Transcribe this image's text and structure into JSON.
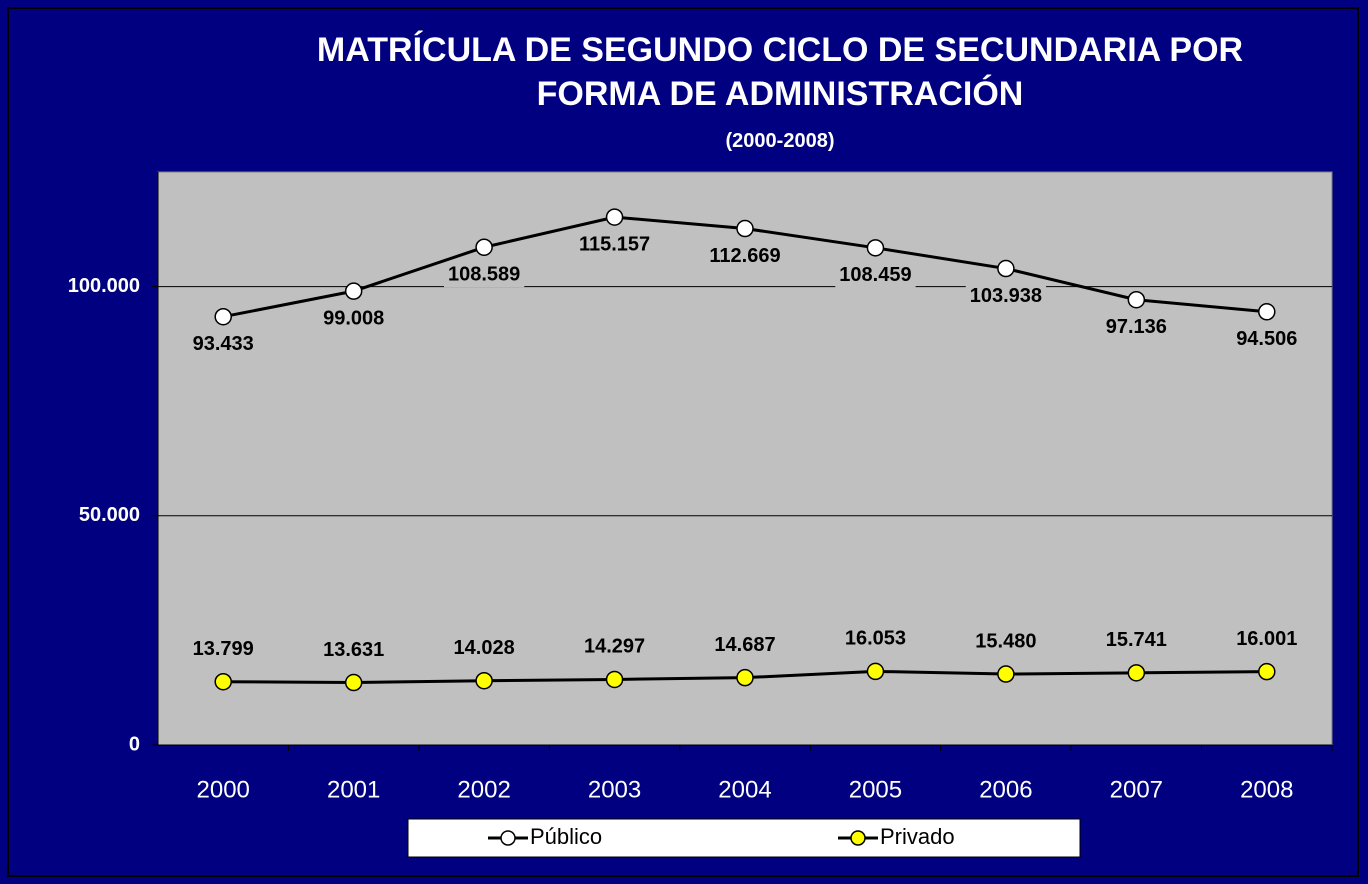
{
  "chart_data": {
    "type": "line",
    "title": "MATRÍCULA DE SEGUNDO CICLO DE SECUNDARIA POR FORMA DE ADMINISTRACIÓN",
    "subtitle": "(2000-2008)",
    "categories": [
      "2000",
      "2001",
      "2002",
      "2003",
      "2004",
      "2005",
      "2006",
      "2007",
      "2008"
    ],
    "series": [
      {
        "name": "Público",
        "color": "#ffffff",
        "values": [
          93433,
          99008,
          108589,
          115157,
          112669,
          108459,
          103938,
          97136,
          94506
        ],
        "value_labels": [
          "93.433",
          "99.008",
          "108.589",
          "115.157",
          "112.669",
          "108.459",
          "103.938",
          "97.136",
          "94.506"
        ]
      },
      {
        "name": "Privado",
        "color": "#ffff00",
        "values": [
          13799,
          13631,
          14028,
          14297,
          14687,
          16053,
          15480,
          15741,
          16001
        ],
        "value_labels": [
          "13.799",
          "13.631",
          "14.028",
          "14.297",
          "14.687",
          "16.053",
          "15.480",
          "15.741",
          "16.001"
        ]
      }
    ],
    "ylim": [
      0,
      125000
    ],
    "yticks": [
      {
        "value": 0,
        "label": "0"
      },
      {
        "value": 50000,
        "label": "50.000"
      },
      {
        "value": 100000,
        "label": "100.000"
      }
    ],
    "grid": true,
    "legend": "bottom"
  }
}
